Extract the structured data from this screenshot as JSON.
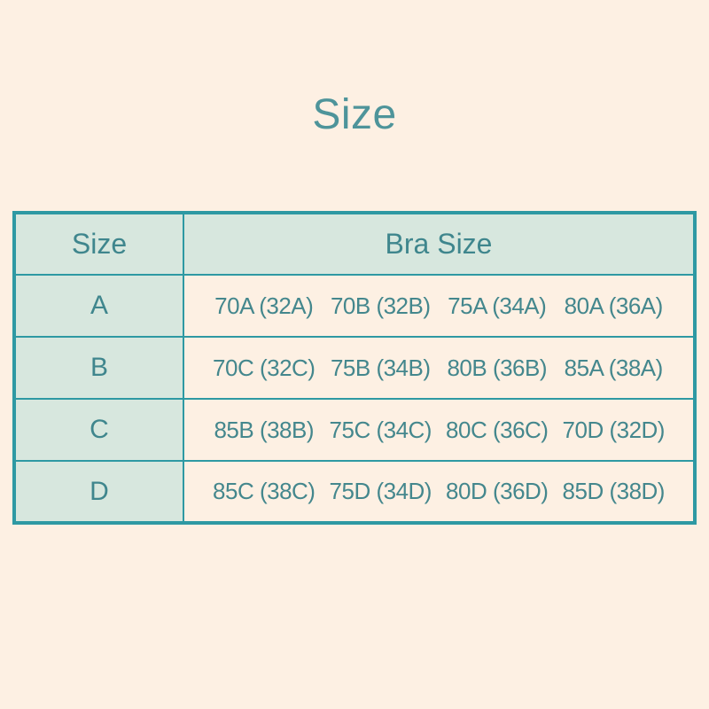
{
  "page": {
    "title": "Size"
  },
  "colors": {
    "background_cream": "#fdf0e3",
    "cell_mint": "#d7e7de",
    "border_teal": "#2e99a3",
    "title_teal": "#4e949a",
    "text_teal": "#44878d"
  },
  "table": {
    "header": {
      "size_label": "Size",
      "bra_size_label": "Bra Size"
    },
    "rows": [
      {
        "size": "A",
        "values": [
          "70A (32A)",
          "70B (32B)",
          "75A (34A)",
          "80A (36A)"
        ]
      },
      {
        "size": "B",
        "values": [
          "70C (32C)",
          "75B (34B)",
          "80B (36B)",
          "85A (38A)"
        ]
      },
      {
        "size": "C",
        "values": [
          "85B (38B)",
          "75C (34C)",
          "80C (36C)",
          "70D (32D)"
        ]
      },
      {
        "size": "D",
        "values": [
          "85C (38C)",
          "75D (34D)",
          "80D (36D)",
          "85D (38D)"
        ]
      }
    ]
  },
  "chart_data": {
    "type": "table",
    "title": "Size",
    "columns": [
      "Size",
      "Bra Size"
    ],
    "rows": [
      [
        "A",
        "70A (32A)",
        "70B (32B)",
        "75A (34A)",
        "80A (36A)"
      ],
      [
        "B",
        "70C (32C)",
        "75B (34B)",
        "80B (36B)",
        "85A (38A)"
      ],
      [
        "C",
        "85B (38B)",
        "75C (34C)",
        "80C (36C)",
        "70D (32D)"
      ],
      [
        "D",
        "85C (38C)",
        "75D (34D)",
        "80D (36D)",
        "85D (38D)"
      ]
    ]
  }
}
